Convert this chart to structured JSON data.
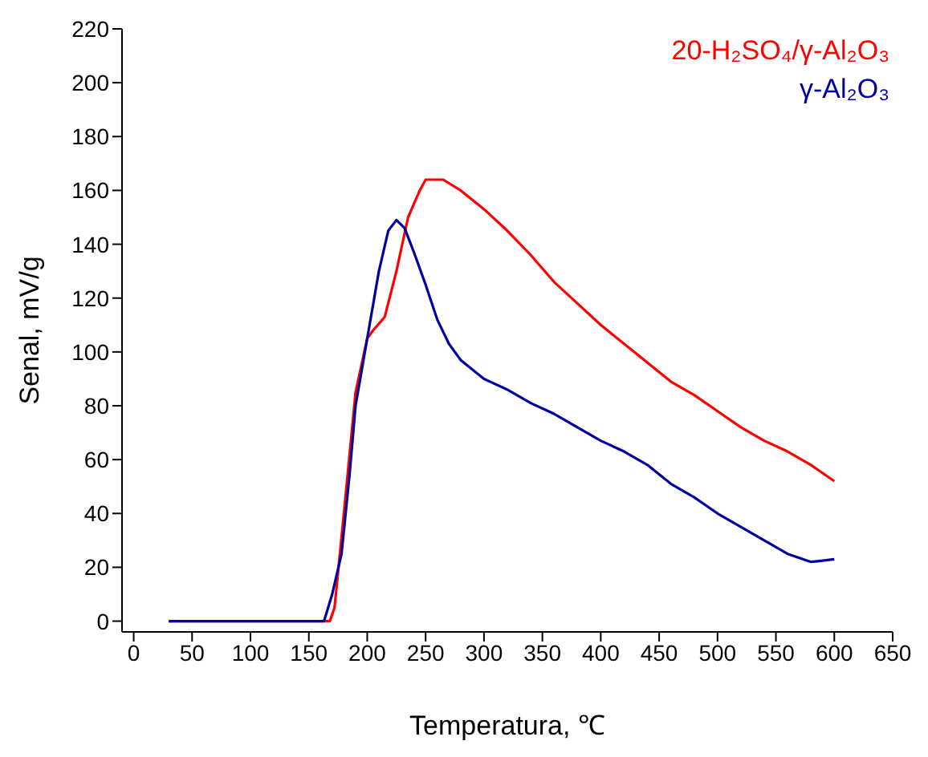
{
  "chart_data": {
    "type": "line",
    "xlabel": "Temperatura, ℃",
    "ylabel": "Senal, mV/g",
    "xlim": [
      -10,
      650
    ],
    "xticks": [
      0,
      50,
      100,
      150,
      200,
      250,
      300,
      350,
      400,
      450,
      500,
      550,
      600,
      650
    ],
    "ylim": [
      -4,
      220
    ],
    "yticks": [
      0,
      20,
      40,
      60,
      80,
      100,
      120,
      140,
      160,
      180,
      200,
      220
    ],
    "grid": false,
    "legend": "top right",
    "marker": "none",
    "line_style": "solid",
    "series": [
      {
        "name": "20-H₂SO₄/γ-Al₂O₃",
        "color": "#ff0000",
        "x": [
          30,
          100,
          168,
          172,
          180,
          190,
          200,
          205,
          215,
          225,
          235,
          245,
          250,
          265,
          280,
          300,
          320,
          340,
          360,
          380,
          400,
          420,
          440,
          460,
          480,
          500,
          520,
          540,
          560,
          580,
          600
        ],
        "values": [
          0,
          0,
          0,
          5,
          40,
          85,
          105,
          108,
          113,
          130,
          150,
          160,
          164,
          164,
          160,
          153,
          145,
          136,
          126,
          118,
          110,
          103,
          96,
          89,
          84,
          78,
          72,
          67,
          63,
          58,
          52
        ]
      },
      {
        "name": "γ-Al₂O₃",
        "color": "#0000a0",
        "x": [
          30,
          100,
          163,
          170,
          178,
          185,
          190,
          200,
          210,
          218,
          225,
          232,
          240,
          250,
          260,
          270,
          280,
          300,
          320,
          340,
          360,
          380,
          400,
          420,
          440,
          460,
          480,
          500,
          520,
          540,
          560,
          580,
          600
        ],
        "values": [
          0,
          0,
          0,
          10,
          25,
          55,
          80,
          105,
          130,
          145,
          149,
          146,
          137,
          125,
          112,
          103,
          97,
          90,
          86,
          81,
          77,
          72,
          67,
          63,
          58,
          51,
          46,
          40,
          35,
          30,
          25,
          22,
          23
        ]
      }
    ]
  }
}
